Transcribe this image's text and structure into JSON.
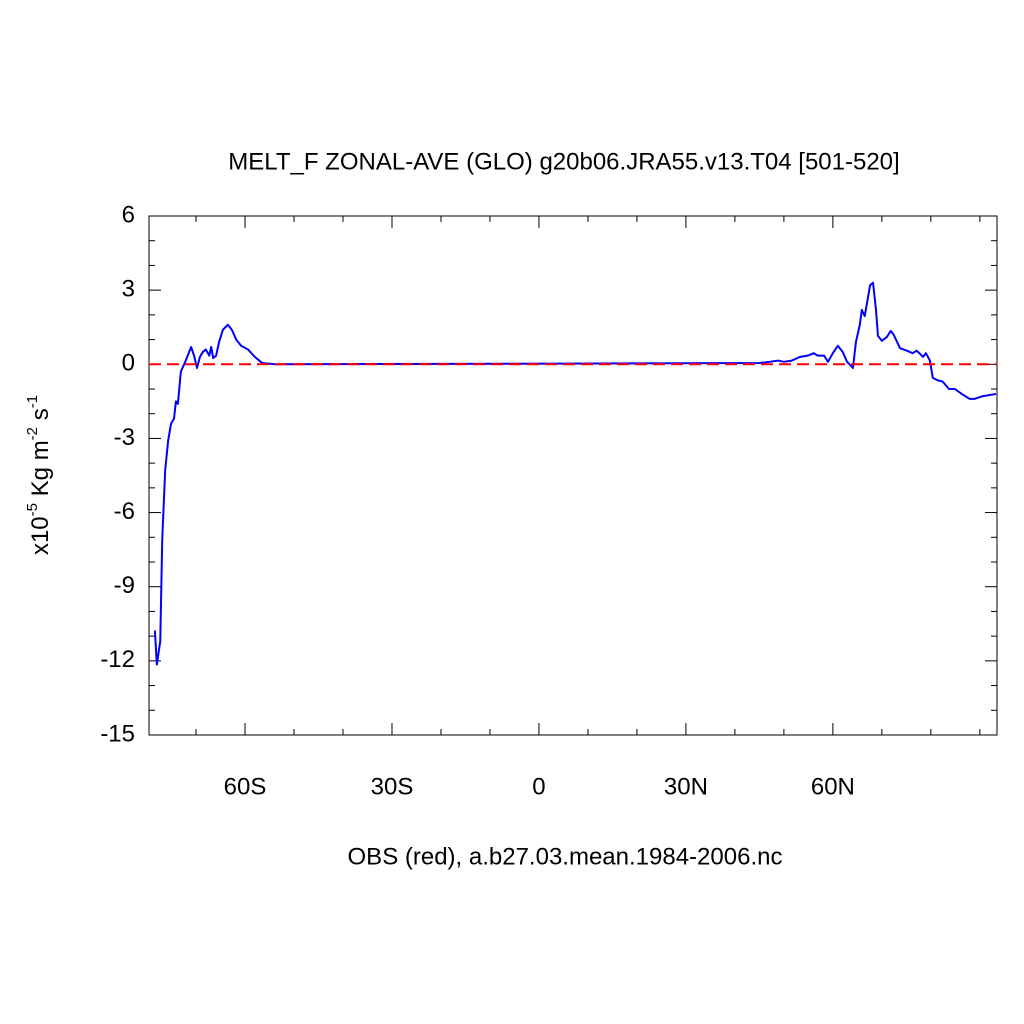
{
  "chart_data": {
    "type": "line",
    "title": "MELT_F ZONAL-AVE (GLO) g20b06.JRA55.v13.T04 [501-520]",
    "xlabel": "OBS (red), a.b27.03.mean.1984-2006.nc",
    "ylabel_parts": [
      {
        "text": "x10"
      },
      {
        "text": "-5",
        "sup": true
      },
      {
        "text": " Kg m"
      },
      {
        "text": "-2",
        "sup": true
      },
      {
        "text": " s"
      },
      {
        "text": "-1",
        "sup": true
      }
    ],
    "xlim": [
      -79.6,
      93.5
    ],
    "ylim": [
      -15,
      6
    ],
    "xticks": [
      {
        "value": -60,
        "label": "60S"
      },
      {
        "value": -30,
        "label": "30S"
      },
      {
        "value": 0,
        "label": "0"
      },
      {
        "value": 30,
        "label": "30N"
      },
      {
        "value": 60,
        "label": "60N"
      }
    ],
    "xminorticks": [
      -70,
      -50,
      -40,
      -20,
      -10,
      10,
      20,
      40,
      50,
      70,
      80,
      90
    ],
    "yticks": [
      6,
      3,
      0,
      -3,
      -6,
      -9,
      -12,
      -15
    ],
    "yminorticks": [
      5,
      4,
      2,
      1,
      -1,
      -2,
      -4,
      -5,
      -7,
      -8,
      -10,
      -11,
      -13,
      -14
    ],
    "series": [
      {
        "color": "#0000ff",
        "dash": false,
        "x": [
          -78.4,
          -78.0,
          -77.3,
          -76.9,
          -76.3,
          -75.7,
          -75.1,
          -74.5,
          -74.1,
          -73.7,
          -73.1,
          -72.2,
          -71.6,
          -71.0,
          -70.4,
          -69.8,
          -69.2,
          -68.6,
          -68.0,
          -67.3,
          -66.9,
          -66.5,
          -65.9,
          -65.3,
          -64.5,
          -63.5,
          -62.7,
          -61.8,
          -60.8,
          -59.4,
          -58.0,
          -56.5,
          -53.9,
          45.1,
          47.1,
          48.8,
          50.0,
          51.6,
          53.3,
          54.9,
          56.1,
          56.9,
          58.2,
          59.0,
          60.0,
          61.0,
          62.0,
          62.9,
          64.1,
          64.7,
          65.5,
          65.9,
          66.5,
          66.9,
          67.6,
          68.2,
          68.8,
          69.2,
          70.0,
          71.0,
          71.8,
          72.4,
          73.7,
          75.1,
          76.3,
          77.1,
          77.9,
          78.4,
          79.0,
          79.8,
          80.4,
          81.4,
          82.4,
          83.7,
          84.9,
          86.3,
          87.9,
          88.9,
          90.4,
          93.3
        ],
        "values": [
          -10.77,
          -12.15,
          -11.2,
          -7.1,
          -4.3,
          -3.1,
          -2.4,
          -2.2,
          -1.5,
          -1.6,
          -0.3,
          0.1,
          0.4,
          0.7,
          0.35,
          -0.15,
          0.3,
          0.5,
          0.6,
          0.35,
          0.7,
          0.25,
          0.35,
          0.9,
          1.4,
          1.6,
          1.4,
          1.0,
          0.75,
          0.6,
          0.3,
          0.05,
          0,
          0.05,
          0.1,
          0.15,
          0.1,
          0.15,
          0.3,
          0.35,
          0.45,
          0.35,
          0.35,
          0.1,
          0.45,
          0.75,
          0.5,
          0.1,
          -0.15,
          0.9,
          1.6,
          2.2,
          1.95,
          2.4,
          3.2,
          3.3,
          2.2,
          1.15,
          0.95,
          1.1,
          1.35,
          1.2,
          0.65,
          0.55,
          0.45,
          0.55,
          0.4,
          0.3,
          0.45,
          0.15,
          -0.55,
          -0.65,
          -0.7,
          -1.0,
          -1.0,
          -1.2,
          -1.4,
          -1.4,
          -1.3,
          -1.2
        ]
      },
      {
        "color": "#ff0000",
        "dash": true,
        "x": [
          -79.6,
          93.5
        ],
        "values": [
          0,
          0
        ]
      }
    ]
  }
}
